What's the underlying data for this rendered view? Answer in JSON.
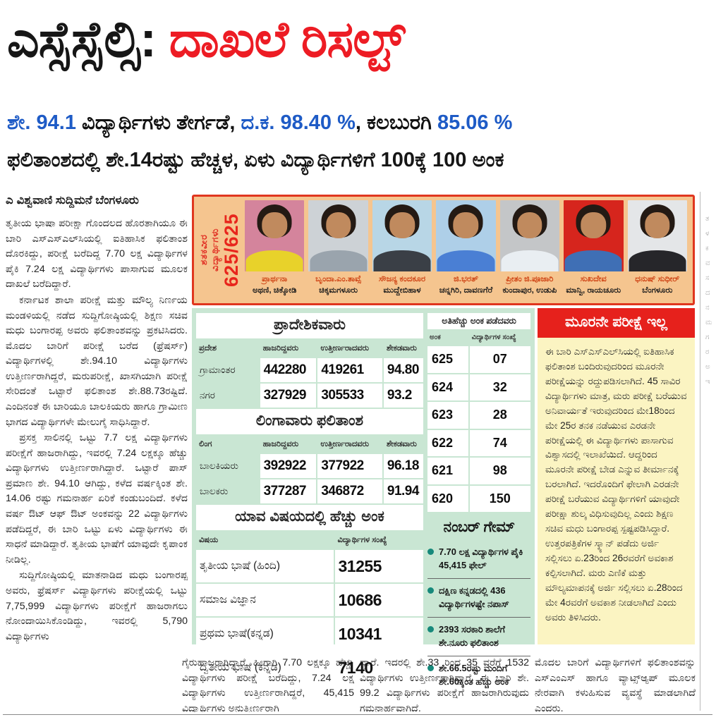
{
  "masthead": {
    "headline_black": "ಎಸ್ಸೆಸ್ಸೆಲ್ಸಿ: ",
    "headline_red": "ದಾಖಲೆ ರಿಸಲ್ಟ್",
    "subhead1": {
      "seg1": "ಶೇ. 94.1 ",
      "seg2": "ವಿದ್ಯಾರ್ಥಿಗಳು ತೇರ್ಗಡೆ, ",
      "seg3": "ದ.ಕ. 98.40 %",
      "seg4": ", ಕಲಬುರಗಿ ",
      "seg5": "85.06 %"
    },
    "subhead2": "ಫಲಿತಾಂಶದಲ್ಲಿ ಶೇ.14ರಷ್ಟು ಹೆಚ್ಚಳ, ಏಳು ವಿದ್ಯಾರ್ಥಿಗಳಿಗೆ 100ಕ್ಕೆ 100 ಅಂಕ"
  },
  "byline": {
    "mark": "ಎ",
    "text": "ವಿಶ್ವವಾಣಿ ಸುದ್ದಿಮನೆ ಬೆಂಗಳೂರು"
  },
  "article": {
    "col1_p1": "ತೃತೀಯ ಭಾಷಾ ಪರೀಕ್ಷಾ ಗೊಂದಲದ ಹೊರತಾಗಿಯೂ ಈ ಬಾರಿ ಎಸ್‌ಎಸ್‌ಎಲ್‌ಸಿಯಲ್ಲಿ ಐತಿಹಾಸಿಕ ಫಲಿತಾಂಶ ದೊರಕಿದ್ದು, ಪರೀಕ್ಷೆ ಬರೆದಿದ್ದ 7.70 ಲಕ್ಷ ವಿದ್ಯಾರ್ಥಿಗಳ ಪೈಕಿ 7.24 ಲಕ್ಷ ವಿದ್ಯಾರ್ಥಿಗಳು ಪಾಸಾಗುವ ಮೂಲಕ ದಾಖಲೆ ಬರೆದಿದ್ದಾರೆ.",
    "col1_p2": "ಕರ್ನಾಟಕ ಶಾಲಾ ಪರೀಕ್ಷೆ ಮತ್ತು ಮೌಲ್ಯ ನಿರ್ಣಯ ಮಂಡಳಿಯಲ್ಲಿ ನಡೆದ ಸುದ್ದಿಗೋಷ್ಠಿಯಲ್ಲಿ ಶಿಕ್ಷಣ ಸಚಿವ ಮಧು ಬಂಗಾರಪ್ಪ ಅವರು ಫಲಿತಾಂಶವನ್ನು ಪ್ರಕಟಿಸಿದರು. ಮೊದಲ ಬಾರಿಗೆ ಪರೀಕ್ಷೆ ಬರೆದ (ಫ್ರೆಷರ್ಸ್) ವಿದ್ಯಾರ್ಥಿಗಳಲ್ಲಿ ಶೇ.94.10 ವಿದ್ಯಾರ್ಥಿಗಳು ಉತ್ತೀರ್ಣರಾಗಿದ್ದರೆ, ಮರುಪರೀಕ್ಷೆ, ಖಾಸಗಿಯಾಗಿ ಪರೀಕ್ಷೆ ಸೇರಿದಂತೆ ಒಟ್ಟಾರೆ ಫಲಿತಾಂಶ ಶೇ.88.73ರಷ್ಟಿದೆ. ಎಂದಿನಂತೆ ಈ ಬಾರಿಯೂ ಬಾಲಕಿಯರು ಹಾಗೂ ಗ್ರಾಮೀಣ ಭಾಗದ ವಿದ್ಯಾರ್ಥಿಗಳೇ ಮೇಲುಗೈ ಸಾಧಿಸಿದ್ದಾರೆ.",
    "col1_p3": "ಪ್ರಸಕ್ತ ಸಾಲಿನಲ್ಲಿ ಒಟ್ಟು 7.7 ಲಕ್ಷ ವಿದ್ಯಾರ್ಥಿಗಳು ಪರೀಕ್ಷೆಗೆ ಹಾಜರಾಗಿದ್ದು, ಇವರಲ್ಲಿ 7.24 ಲಕ್ಷಕ್ಕೂ ಹೆಚ್ಚು ವಿದ್ಯಾರ್ಥಿಗಳು ಉತ್ತೀರ್ಣರಾಗಿದ್ದಾರೆ. ಒಟ್ಟಾರೆ ಪಾಸ್ ಪ್ರಮಾಣ ಶೇ. 94.10 ಆಗಿದ್ದು, ಕಳೆದ ವರ್ಷಕ್ಕಿಂತ ಶೇ. 14.06 ರಷ್ಟು ಗಮನಾರ್ಹ ಏರಿಕೆ ಕಂಡುಬಂದಿದೆ. ಕಳೆದ ವರ್ಷ ಔಟ್ ಆಫ್ ಔಟ್ ಅಂಕವನ್ನು 22 ವಿದ್ಯಾರ್ಥಿಗಳು ಪಡೆದಿದ್ದರೆ, ಈ ಬಾರಿ ಒಟ್ಟು ಏಳು ವಿದ್ಯಾರ್ಥಿಗಳು ಈ ಸಾಧನೆ ಮಾಡಿದ್ದಾರೆ. ತೃತೀಯ ಭಾಷೆಗೆ ಯಾವುದೇ ಕೃಪಾಂಕ ನೀಡಿಲ್ಲ.",
    "col1_p4": "ಸುದ್ದಿಗೋಷ್ಠಿಯಲ್ಲಿ ಮಾತನಾಡಿದ ಮಧು ಬಂಗಾರಪ್ಪ ಅವರು, ಫ್ರೆಷರ್ಸ್ ವಿದ್ಯಾರ್ಥಿಗಳು ಪರೀಕ್ಷೆಯಲ್ಲಿ ಒಟ್ಟು 7,75,999 ವಿದ್ಯಾರ್ಥಿಗಳು ಪರೀಕ್ಷೆಗೆ ಹಾಜರಾಗಲು ನೋಂದಾಯಿಸಿಕೊಂಡಿದ್ದು, ಇವರಲ್ಲಿ 5,790 ವಿದ್ಯಾರ್ಥಿಗಳು",
    "col2": "ಗೈರುಹಾಜರಾಗಿದ್ದಾರೆ. ಹೀಗಾಗಿ 7.70 ಲಕ್ಷಕ್ಕೂ ಹೆಚ್ಚು ವಿದ್ಯಾರ್ಥಿಗಳು ಪರೀಕ್ಷೆ ಬರೆದಿದ್ದು, 7.24 ಲಕ್ಷ ವಿದ್ಯಾರ್ಥಿಗಳು ಉತ್ತೀರ್ಣರಾಗಿದ್ದರೆ, 45,415 ವಿದ್ಯಾರ್ಥಿಗಳು ಅನುತ್ತೀರ್ಣರಾಗಿ",
    "col3": "ದ್ದಾರೆ. ಇದರಲ್ಲಿ ಶೇ.33 ರಿಂದ 35 ವರೆಗೆ 1532 ವಿದ್ಯಾರ್ಥಿಗಳು ಉತ್ತೀರ್ಣರಾಗಿದ್ದಾರೆ. ಈ ಬಾರಿ ಶೇ. 99.2 ವಿದ್ಯಾರ್ಥಿಗಳು ಪರೀಕ್ಷೆಗೆ ಹಾಜರಾಗಿರುವುದು ಗಮನಾರ್ಹವಾಗಿದೆ.",
    "col4": "ಮೊದಲ ಬಾರಿಗೆ ವಿದ್ಯಾರ್ಥಿಗಳಿಗೆ ಫಲಿತಾಂಶವನ್ನು ಎಸ್‌ಎಂಎಸ್ ಹಾಗೂ ವ್ಯಾಟ್ಸ್‌ಆ್ಯಪ್ ಮೂಲಕ ನೇರವಾಗಿ ಕಳುಹಿಸುವ ವ್ಯವಸ್ಥೆ ಮಾಡಲಾಗಿದೆ ಎಂದರು."
  },
  "toppers": {
    "vertical_label_line1": "ಶತಕವೀರ",
    "vertical_label_line2": "ವಿದ್ಯಾರ್ಥಿಗಳು",
    "score": "625/625",
    "students": [
      {
        "name": "ಪ್ರಾರ್ಥನಾ",
        "place": "ಅಥಣಿ, ಚಿಕ್ಕೋಡಿ",
        "bg": "#d4849c",
        "shirt": "#e8d22a"
      },
      {
        "name": "ಬೃಂದಾ.ಎಂ.ತಾವ್ಸೆ",
        "place": "ಚಿಕ್ಕಮಗಳೂರು",
        "bg": "#cdd2d6",
        "shirt": "#9aa4ad"
      },
      {
        "name": "ಸೌಜನ್ಯ ಕಂದಕೂರ",
        "place": "ಮುದ್ದೇಬಿಹಾಳ",
        "bg": "#b8d6e6",
        "shirt": "#3a3f46"
      },
      {
        "name": "ಜಿ.ಭರತ್",
        "place": "ಚನ್ನಗಿರಿ, ದಾವಣಗೆರೆ",
        "bg": "#aecfe8",
        "shirt": "#4a7fd4"
      },
      {
        "name": "ಪ್ರೀತಂ ಜಿ.ಪೂಜಾರಿ",
        "place": "ಕುಂದಾಪುರ, ಉಡುಪಿ",
        "bg": "#c4c6c8",
        "shirt": "#e9eef2"
      },
      {
        "name": "ಸುಖದೇವ",
        "place": "ಮಾನ್ವಿ, ರಾಯಚೂರು",
        "bg": "#d6251d",
        "shirt": "#3f6fb5"
      },
      {
        "name": "ಧನುಷ್ ಸುಧೀರ್",
        "place": "ಬೆಂಗಳೂರು",
        "bg": "#e4e6e8",
        "shirt": "#26262a"
      }
    ]
  },
  "tables": {
    "regional": {
      "title": "ಪ್ರಾದೇಶಿಕವಾರು",
      "headers": [
        "ಪ್ರದೇಶ",
        "ಹಾಜರಿದ್ದವರು",
        "ಉತ್ತೀರ್ಣರಾದವರು",
        "ಶೇಕಡವಾರು"
      ],
      "rows": [
        [
          "ಗ್ರಾಮಾಂತರ",
          "442280",
          "419261",
          "94.80"
        ],
        [
          "ನಗರ",
          "327929",
          "305533",
          "93.2"
        ]
      ]
    },
    "gender": {
      "title": "ಲಿಂಗಾವಾರು ಫಲಿತಾಂಶ",
      "headers": [
        "ಲಿಂಗ",
        "ಹಾಜರಿದ್ದವರು",
        "ಉತ್ತೀರ್ಣರಾದವರು",
        "ಶೇಕಡವಾರು"
      ],
      "rows": [
        [
          "ಬಾಲಕಿಯರು",
          "392922",
          "377922",
          "96.18"
        ],
        [
          "ಬಾಲಕರು",
          "377287",
          "346872",
          "91.94"
        ]
      ]
    },
    "subjects": {
      "title": "ಯಾವ ವಿಷಯದಲ್ಲಿ ಹೆಚ್ಚು ಅಂಕ",
      "headers": [
        "ವಿಷಯ",
        "ವಿದ್ಯಾರ್ಥಿಗಳ ಸಂಖ್ಯೆ"
      ],
      "rows": [
        [
          "ತೃತೀಯ ಭಾಷೆ (ಹಿಂದಿ)",
          "31255"
        ],
        [
          "ಸಮಾಜ ವಿಜ್ಞಾನ",
          "10686"
        ],
        [
          "ಪ್ರಥಮ ಭಾಷೆ(ಕನ್ನಡ)",
          "10341"
        ],
        [
          "ದ್ವಿತೀಯ ಭಾಷೆ (ಕನ್ನಡ)",
          "7140"
        ]
      ]
    },
    "top_scores": {
      "title": "ಅತಿಹೆಚ್ಚು ಅಂಕ ಪಡೆದವರು",
      "headers": [
        "ಅಂಕ",
        "ವಿದ್ಯಾರ್ಥಿಗಳ ಸಂಖ್ಯೆ"
      ],
      "rows": [
        [
          "625",
          "07"
        ],
        [
          "624",
          "32"
        ],
        [
          "623",
          "28"
        ],
        [
          "622",
          "74"
        ],
        [
          "621",
          "98"
        ],
        [
          "620",
          "150"
        ]
      ]
    }
  },
  "number_game": {
    "title": "ನಂಬರ್ ಗೇಮ್",
    "bullet": "●",
    "items": [
      "7.70 ಲಕ್ಷ ವಿದ್ಯಾರ್ಥಿಗಳ ಪೈಕಿ 45,415 ಫೇಲ್",
      "ದಕ್ಷಿಣ ಕನ್ನಡದಲ್ಲಿ 436 ವಿದ್ಯಾರ್ಥಿಗಳಷ್ಟೇ ನಪಾಸ್",
      "2393 ಸರಕಾರಿ ಶಾಲೆಗೆ ಶೇ.ನೂರು ಫಲಿತಾಂಶ",
      "ಶೇ.66.5ರಷ್ಟು ಮಂದಿಗೆ ಶೇ.60ಕ್ಕಿಂತ ಹೆಚ್ಚು ಅಂಕ"
    ]
  },
  "no_third_exam": {
    "title": "ಮೂರನೇ ಪರೀಕ್ಷೆ ಇಲ್ಲ",
    "body": "ಈ ಬಾರಿ ಎಸ್‌ಎಸ್‌ಎಲ್‌ಸಿಯಲ್ಲಿ ಐತಿಹಾಸಿಕ ಫಲಿತಾಂಶ ಬಂದಿರುವುದರಿಂದ ಮೂರನೇ ಪರೀಕ್ಷೆಯನ್ನು ರದ್ದುಪಡಿಸಲಾಗಿದೆ. 45 ಸಾವಿರ ವಿದ್ಯಾರ್ಥಿಗಳು ಮಾತ್ರ, ಮರು ಪರೀಕ್ಷೆ ಬರೆಯುವ ಅನಿವಾರ್ಯತೆ ಇರುವುದರಿಂದ ಮೇ18ರಿಂದ ಮೇ 25ರ ತನಕ ನಡೆಯುವ ಎರಡನೇ ಪರೀಕ್ಷೆಯಲ್ಲಿ ಈ ವಿದ್ಯಾರ್ಥಿಗಳು ಪಾಸಾಗುವ ವಿಶ್ವಾಸದಲ್ಲಿ ಇಲಾಖೆಯಿದೆ. ಆದ್ದರಿಂದ ಮೂರನೇ ಪರೀಕ್ಷೆ ಬೇಡ ಎನ್ನುವ ತೀರ್ಮಾನಕ್ಕೆ ಬರಲಾಗಿದೆ. ಇದರೊಂದಿಗೆ ಫೇಲಾಗಿ ಎರಡನೇ ಪರೀಕ್ಷೆ ಬರೆಯುವ ವಿದ್ಯಾರ್ಥಿಗಳಿಗೆ ಯಾವುದೇ ಪರೀಕ್ಷಾ ಶುಲ್ಕ ವಿಧಿಸುವುದಿಲ್ಲ ಎಂದು ಶಿಕ್ಷಣ ಸಚಿವ ಮಧು ಬಂಗಾರಪ್ಪ ಸ್ಪಷ್ಟಪಡಿಸಿದ್ದಾರೆ. ಉತ್ತರಪತ್ರಿಕೆಗಳ ಸ್ಕ್ಯಾನ್ ಪಡೆದು ಅರ್ಜಿ ಸಲ್ಲಿಸಲು ಏ.23ರಿಂದ 26ರವರೆಗೆ ಅವಕಾಶ ಕಲ್ಪಿಸಲಾಗಿದೆ. ಮರು ಎಣಿಕೆ ಮತ್ತು ಮೌಲ್ಯಮಾಪನಕ್ಕೆ ಅರ್ಜಿ ಸಲ್ಲಿಸಲು ಏ.28ರಿಂದ ಮೇ 4ರವರೆಗೆ ಅವಕಾಶ ನೀಡಲಾಗಿದೆ ಎಂದು ಅವರು ತಿಳಿಸಿದರು."
  },
  "page_edge_fragments": "ತ\nಳ\nಕ\nವ\nಸ\nದ\nನ\nಮ\nಗ\nರ\nಅ\nಇ",
  "colors": {
    "headline_red": "#ed1c24",
    "accent_blue": "#1e5bc6",
    "mint_panel": "#c9e6d3",
    "yellow_panel": "#fbf4c2",
    "red_bar": "#e6211c",
    "peach_box": "#f5c58f",
    "box_border_red": "#e0361f",
    "name_red": "#cf4516",
    "bullet_teal": "#17897b"
  }
}
